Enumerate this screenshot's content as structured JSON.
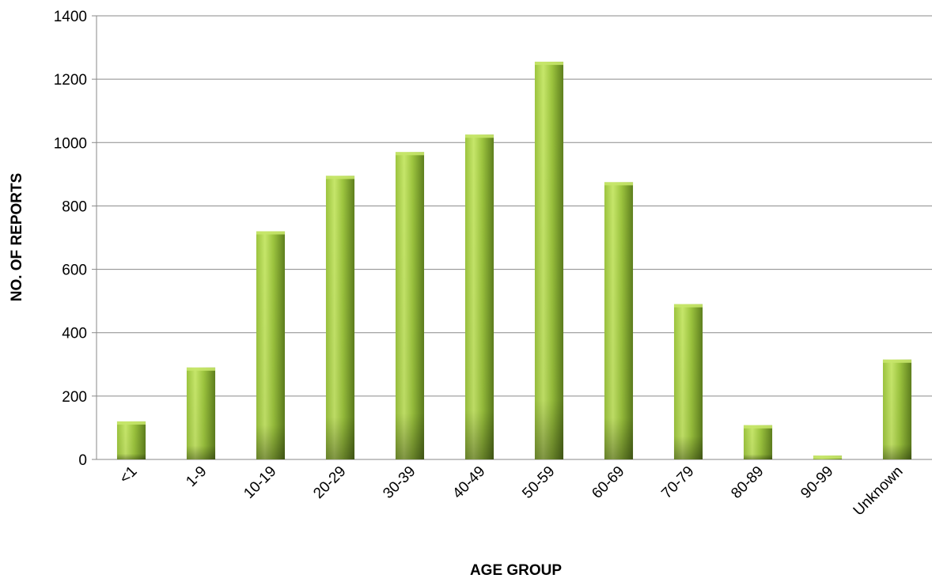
{
  "chart_data": {
    "type": "bar",
    "title": "",
    "xlabel": "AGE GROUP",
    "ylabel": "NO. OF REPORTS",
    "categories": [
      "<1",
      "1-9",
      "10-19",
      "20-29",
      "30-39",
      "40-49",
      "50-59",
      "60-69",
      "70-79",
      "80-89",
      "90-99",
      "Unknown"
    ],
    "values": [
      120,
      290,
      720,
      895,
      970,
      1025,
      1255,
      875,
      490,
      108,
      12,
      315
    ],
    "ylim": [
      0,
      1400
    ],
    "yticks": [
      0,
      200,
      400,
      600,
      800,
      1000,
      1200,
      1400
    ],
    "grid": true,
    "legend": "none",
    "colors": {
      "bar_light": "#c6e66a",
      "bar_mid": "#9cc43e",
      "bar_dark": "#5e7f1e",
      "gridline": "#8a8a8a",
      "axis": "#8a8a8a"
    }
  }
}
